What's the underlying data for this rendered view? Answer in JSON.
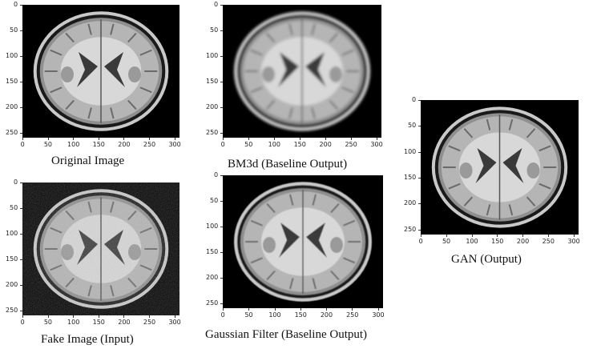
{
  "panels": [
    {
      "id": "original",
      "caption": "Original Image"
    },
    {
      "id": "bm3d",
      "caption": "BM3d (Baseline Output)"
    },
    {
      "id": "gan",
      "caption": "GAN (Output)"
    },
    {
      "id": "fake",
      "caption": "Fake Image (Input)"
    },
    {
      "id": "gaussian",
      "caption": "Gaussian Filter (Baseline Output)"
    }
  ],
  "axes": {
    "x_ticks": [
      "0",
      "50",
      "100",
      "150",
      "200",
      "250",
      "300"
    ],
    "y_ticks": [
      "0",
      "50",
      "100",
      "150",
      "200",
      "250"
    ]
  }
}
